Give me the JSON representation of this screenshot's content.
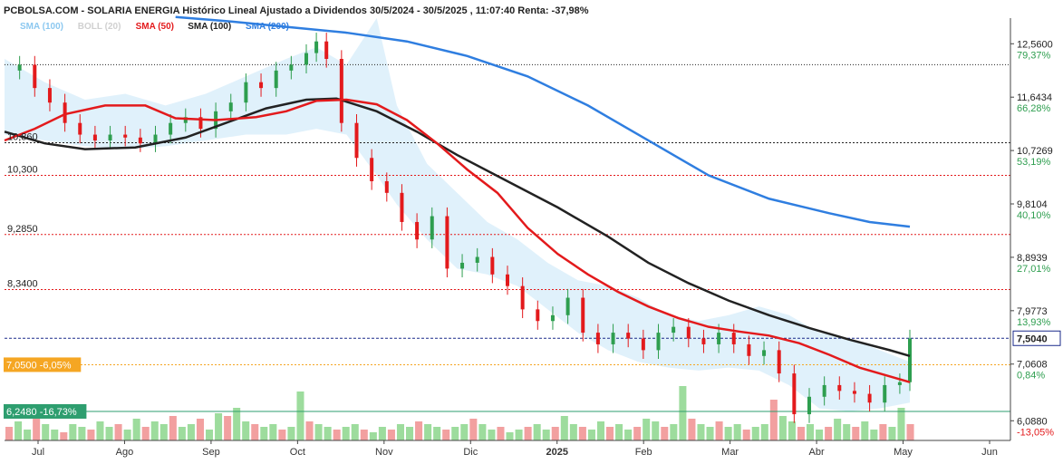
{
  "chart_data": {
    "type": "candlestick",
    "title": "PCBOLSA.COM - SOLARIA ENERGIA Histórico Lineal Ajustado a Dividendos 30/5/2024 - 30/5/2025 , 11:07:40 Renta: -37,98%",
    "legend": [
      {
        "label": "SMA (100)",
        "color": "#8cc8f0"
      },
      {
        "label": "BOLL (20)",
        "color": "#d0d0d0"
      },
      {
        "label": "SMA (50)",
        "color": "#e31a1c"
      },
      {
        "label": "SMA (100)",
        "color": "#222222"
      },
      {
        "label": "SMA (200)",
        "color": "#2f7ee0"
      }
    ],
    "x_ticks": [
      "Jul",
      "Ago",
      "Sep",
      "Oct",
      "Nov",
      "Dic",
      "2025",
      "Feb",
      "Mar",
      "Abr",
      "May",
      "Jun"
    ],
    "y_ticks": [
      {
        "value": "12,5600",
        "pct": "79,37%",
        "pct_color": "#2e9e4f"
      },
      {
        "value": "11,6434",
        "pct": "66,28%",
        "pct_color": "#2e9e4f"
      },
      {
        "value": "10,7269",
        "pct": "53,19%",
        "pct_color": "#2e9e4f"
      },
      {
        "value": "9,8104",
        "pct": "40,10%",
        "pct_color": "#2e9e4f"
      },
      {
        "value": "8,8939",
        "pct": "27,01%",
        "pct_color": "#2e9e4f"
      },
      {
        "value": "7,9773",
        "pct": "13,93%",
        "pct_color": "#2e9e4f"
      },
      {
        "value": "7,0608",
        "pct": "0,84%",
        "pct_color": "#2e9e4f"
      },
      {
        "value": "6,0880",
        "pct": "-13,05%",
        "pct_color": "#e31a1c"
      }
    ],
    "last_price": "7,5040",
    "levels": [
      {
        "label": "10,860",
        "value": 10.86
      },
      {
        "label": "10,300",
        "value": 10.3
      },
      {
        "label": "9,2850",
        "value": 9.285
      },
      {
        "label": "8,3400",
        "value": 8.34
      }
    ],
    "marker_boxes": [
      {
        "label": "7,0500 -6,05%",
        "value": 7.05,
        "color": "#f5a623"
      },
      {
        "label": "6,2480 -16,73%",
        "value": 6.248,
        "color": "#2e9e6f"
      }
    ],
    "ylim": [
      5.75,
      13.0
    ],
    "series": {
      "sma50": [
        [
          0,
          10.9
        ],
        [
          0.03,
          11.1
        ],
        [
          0.06,
          11.35
        ],
        [
          0.1,
          11.5
        ],
        [
          0.14,
          11.5
        ],
        [
          0.17,
          11.28
        ],
        [
          0.21,
          11.25
        ],
        [
          0.25,
          11.3
        ],
        [
          0.28,
          11.4
        ],
        [
          0.31,
          11.58
        ],
        [
          0.34,
          11.6
        ],
        [
          0.37,
          11.52
        ],
        [
          0.4,
          11.25
        ],
        [
          0.43,
          10.85
        ],
        [
          0.46,
          10.4
        ],
        [
          0.49,
          10.0
        ],
        [
          0.52,
          9.4
        ],
        [
          0.55,
          8.95
        ],
        [
          0.58,
          8.6
        ],
        [
          0.61,
          8.3
        ],
        [
          0.64,
          8.05
        ],
        [
          0.67,
          7.85
        ],
        [
          0.7,
          7.7
        ],
        [
          0.73,
          7.62
        ],
        [
          0.76,
          7.55
        ],
        [
          0.79,
          7.42
        ],
        [
          0.82,
          7.22
        ],
        [
          0.85,
          7.0
        ],
        [
          0.88,
          6.85
        ],
        [
          0.9,
          6.75
        ]
      ],
      "sma100": [
        [
          0,
          11.05
        ],
        [
          0.04,
          10.85
        ],
        [
          0.08,
          10.75
        ],
        [
          0.13,
          10.78
        ],
        [
          0.18,
          10.95
        ],
        [
          0.22,
          11.2
        ],
        [
          0.26,
          11.45
        ],
        [
          0.3,
          11.6
        ],
        [
          0.33,
          11.62
        ],
        [
          0.37,
          11.4
        ],
        [
          0.41,
          11.05
        ],
        [
          0.45,
          10.65
        ],
        [
          0.5,
          10.2
        ],
        [
          0.55,
          9.75
        ],
        [
          0.6,
          9.25
        ],
        [
          0.64,
          8.8
        ],
        [
          0.68,
          8.45
        ],
        [
          0.72,
          8.15
        ],
        [
          0.76,
          7.9
        ],
        [
          0.8,
          7.68
        ],
        [
          0.84,
          7.48
        ],
        [
          0.88,
          7.3
        ],
        [
          0.9,
          7.2
        ]
      ],
      "sma200": [
        [
          0.17,
          13.02
        ],
        [
          0.22,
          12.95
        ],
        [
          0.28,
          12.85
        ],
        [
          0.34,
          12.75
        ],
        [
          0.4,
          12.6
        ],
        [
          0.46,
          12.35
        ],
        [
          0.52,
          12.0
        ],
        [
          0.58,
          11.5
        ],
        [
          0.64,
          10.9
        ],
        [
          0.7,
          10.3
        ],
        [
          0.76,
          9.9
        ],
        [
          0.82,
          9.65
        ],
        [
          0.86,
          9.5
        ],
        [
          0.9,
          9.42
        ]
      ],
      "bb_upper": [
        [
          0,
          12.3
        ],
        [
          0.04,
          11.9
        ],
        [
          0.08,
          11.6
        ],
        [
          0.12,
          11.7
        ],
        [
          0.16,
          11.5
        ],
        [
          0.2,
          11.7
        ],
        [
          0.24,
          12.0
        ],
        [
          0.28,
          12.3
        ],
        [
          0.31,
          12.5
        ],
        [
          0.34,
          12.2
        ],
        [
          0.37,
          13.0
        ],
        [
          0.39,
          11.5
        ],
        [
          0.42,
          10.5
        ],
        [
          0.45,
          10.0
        ],
        [
          0.48,
          9.5
        ],
        [
          0.51,
          9.2
        ],
        [
          0.54,
          8.8
        ],
        [
          0.57,
          8.5
        ],
        [
          0.6,
          8.4
        ],
        [
          0.63,
          8.2
        ],
        [
          0.66,
          7.9
        ],
        [
          0.69,
          7.8
        ],
        [
          0.72,
          7.9
        ],
        [
          0.75,
          8.05
        ],
        [
          0.78,
          7.9
        ],
        [
          0.81,
          7.6
        ],
        [
          0.84,
          7.5
        ],
        [
          0.87,
          7.3
        ],
        [
          0.9,
          7.1
        ]
      ],
      "bb_lower": [
        [
          0,
          11.0
        ],
        [
          0.04,
          10.9
        ],
        [
          0.08,
          10.8
        ],
        [
          0.12,
          10.75
        ],
        [
          0.16,
          10.8
        ],
        [
          0.2,
          10.9
        ],
        [
          0.24,
          11.0
        ],
        [
          0.28,
          11.0
        ],
        [
          0.31,
          11.1
        ],
        [
          0.34,
          11.0
        ],
        [
          0.37,
          10.3
        ],
        [
          0.39,
          9.8
        ],
        [
          0.42,
          9.2
        ],
        [
          0.45,
          8.7
        ],
        [
          0.48,
          8.6
        ],
        [
          0.51,
          8.4
        ],
        [
          0.54,
          8.0
        ],
        [
          0.57,
          7.6
        ],
        [
          0.6,
          7.3
        ],
        [
          0.63,
          7.1
        ],
        [
          0.66,
          7.0
        ],
        [
          0.69,
          6.95
        ],
        [
          0.72,
          7.0
        ],
        [
          0.75,
          6.95
        ],
        [
          0.78,
          6.7
        ],
        [
          0.81,
          6.3
        ],
        [
          0.84,
          6.25
        ],
        [
          0.87,
          6.3
        ],
        [
          0.9,
          6.4
        ]
      ],
      "price": [
        [
          0,
          12.1
        ],
        [
          0.015,
          12.2
        ],
        [
          0.03,
          11.8
        ],
        [
          0.045,
          11.55
        ],
        [
          0.06,
          11.2
        ],
        [
          0.075,
          11.0
        ],
        [
          0.09,
          10.9
        ],
        [
          0.105,
          11.0
        ],
        [
          0.12,
          10.95
        ],
        [
          0.135,
          10.85
        ],
        [
          0.15,
          11.0
        ],
        [
          0.165,
          11.2
        ],
        [
          0.18,
          11.3
        ],
        [
          0.195,
          11.1
        ],
        [
          0.21,
          11.4
        ],
        [
          0.225,
          11.55
        ],
        [
          0.24,
          11.9
        ],
        [
          0.255,
          11.8
        ],
        [
          0.27,
          12.1
        ],
        [
          0.285,
          12.2
        ],
        [
          0.3,
          12.4
        ],
        [
          0.31,
          12.6
        ],
        [
          0.32,
          12.3
        ],
        [
          0.335,
          11.2
        ],
        [
          0.35,
          10.6
        ],
        [
          0.365,
          10.2
        ],
        [
          0.38,
          10.0
        ],
        [
          0.395,
          9.5
        ],
        [
          0.41,
          9.2
        ],
        [
          0.425,
          9.6
        ],
        [
          0.44,
          8.7
        ],
        [
          0.455,
          8.8
        ],
        [
          0.47,
          8.9
        ],
        [
          0.485,
          8.6
        ],
        [
          0.5,
          8.4
        ],
        [
          0.515,
          8.0
        ],
        [
          0.53,
          7.8
        ],
        [
          0.545,
          7.9
        ],
        [
          0.56,
          8.2
        ],
        [
          0.575,
          7.6
        ],
        [
          0.59,
          7.4
        ],
        [
          0.605,
          7.6
        ],
        [
          0.62,
          7.5
        ],
        [
          0.635,
          7.3
        ],
        [
          0.65,
          7.6
        ],
        [
          0.665,
          7.7
        ],
        [
          0.68,
          7.5
        ],
        [
          0.695,
          7.4
        ],
        [
          0.71,
          7.6
        ],
        [
          0.725,
          7.4
        ],
        [
          0.74,
          7.2
        ],
        [
          0.755,
          7.3
        ],
        [
          0.77,
          6.9
        ],
        [
          0.785,
          6.2
        ],
        [
          0.8,
          6.5
        ],
        [
          0.815,
          6.7
        ],
        [
          0.83,
          6.6
        ],
        [
          0.845,
          6.55
        ],
        [
          0.86,
          6.4
        ],
        [
          0.875,
          6.7
        ],
        [
          0.89,
          6.75
        ],
        [
          0.9,
          7.5
        ]
      ],
      "volume": [
        5,
        7,
        4,
        9,
        6,
        4,
        3,
        6,
        5,
        4,
        7,
        5,
        6,
        4,
        8,
        5,
        7,
        6,
        9,
        5,
        6,
        8,
        4,
        10,
        9,
        12,
        7,
        6,
        5,
        6,
        4,
        5,
        18,
        7,
        6,
        5,
        4,
        5,
        6,
        4,
        3,
        5,
        4,
        6,
        5,
        7,
        6,
        5,
        4,
        5,
        6,
        8,
        6,
        4,
        5,
        3,
        4,
        5,
        6,
        4,
        5,
        9,
        6,
        5,
        4,
        7,
        5,
        6,
        4,
        5,
        8,
        7,
        5,
        6,
        20,
        8,
        6,
        5,
        7,
        5,
        6,
        4,
        5,
        6,
        15,
        9,
        7,
        5,
        6,
        4,
        5,
        8,
        6,
        5,
        7,
        4,
        6,
        5,
        12,
        6
      ]
    }
  }
}
